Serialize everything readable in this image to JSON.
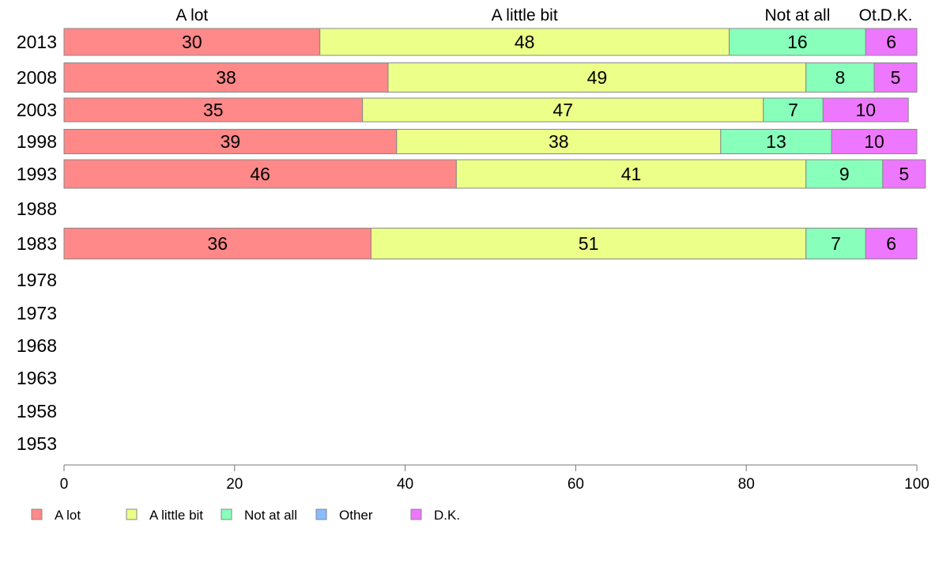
{
  "chart_data": {
    "type": "bar",
    "orientation": "horizontal",
    "stacked": true,
    "title": "",
    "xlabel": "",
    "ylabel": "",
    "xlim": [
      0,
      100
    ],
    "x_ticks": [
      "0",
      "20",
      "40",
      "60",
      "80",
      "100"
    ],
    "x_tick_values": [
      0,
      20,
      40,
      60,
      80,
      100
    ],
    "categories": [
      "2013",
      "2008",
      "2003",
      "1998",
      "1993",
      "1988",
      "1983",
      "1978",
      "1973",
      "1968",
      "1963",
      "1958",
      "1953"
    ],
    "column_headers": [
      {
        "label": "A lot",
        "center": 15
      },
      {
        "label": "A little bit",
        "center": 54
      },
      {
        "label": "Not at all",
        "center": 86
      },
      {
        "label": "Ot.",
        "center": 94.5
      },
      {
        "label": "D.K.",
        "center": 97.6
      }
    ],
    "series": [
      {
        "name": "A lot",
        "color": "#ff8888",
        "values": [
          30,
          38,
          35,
          39,
          46,
          null,
          36,
          null,
          null,
          null,
          null,
          null,
          null
        ]
      },
      {
        "name": "A little bit",
        "color": "#ecff88",
        "values": [
          48,
          49,
          47,
          38,
          41,
          null,
          51,
          null,
          null,
          null,
          null,
          null,
          null
        ]
      },
      {
        "name": "Not at all",
        "color": "#88ffbb",
        "values": [
          16,
          8,
          7,
          13,
          9,
          null,
          7,
          null,
          null,
          null,
          null,
          null,
          null
        ]
      },
      {
        "name": "Other",
        "color": "#88bbff",
        "values": [
          0,
          0,
          0,
          0,
          0,
          null,
          0,
          null,
          null,
          null,
          null,
          null,
          null
        ]
      },
      {
        "name": "D.K.",
        "color": "#ee77ff",
        "values": [
          6,
          5,
          10,
          10,
          5,
          null,
          6,
          null,
          null,
          null,
          null,
          null,
          null
        ]
      }
    ],
    "legend": {
      "position": "bottom-left",
      "items": [
        "A lot",
        "A little bit",
        "Not at all",
        "Other",
        "D.K."
      ]
    },
    "grid": false
  }
}
